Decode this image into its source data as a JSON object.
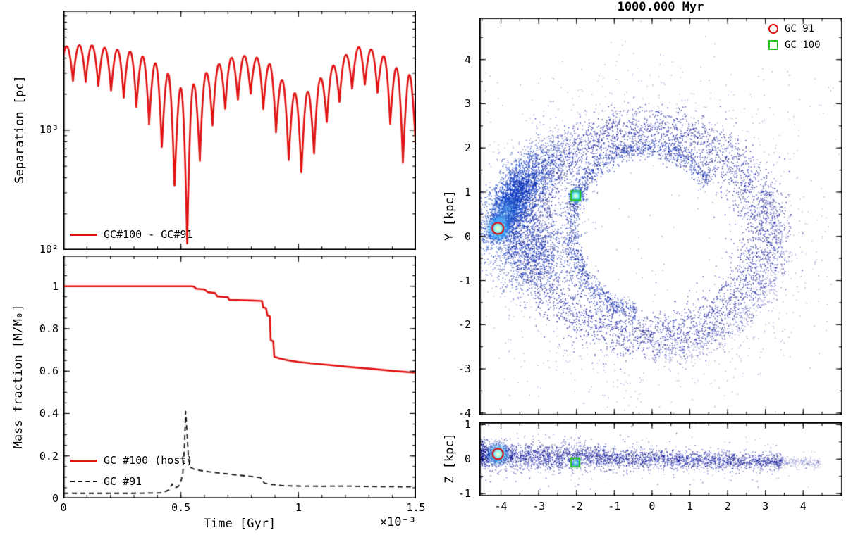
{
  "figure": {
    "background": "#ffffff",
    "frame_color": "#000000"
  },
  "chart_data": [
    {
      "id": "separation",
      "type": "line",
      "title": "",
      "xlabel": "",
      "ylabel": "Separation [pc]",
      "x_range": [
        0,
        1.5
      ],
      "y_log_range": [
        2,
        4
      ],
      "x_major": [
        0,
        0.5,
        1,
        1.5
      ],
      "x_minor_step": 0.1,
      "yticks": [
        {
          "v": 100,
          "label": "10²"
        },
        {
          "v": 1000,
          "label": "10³"
        }
      ],
      "legend": [
        {
          "label": "GC#100 - GC#91",
          "color": "#e01212",
          "style": "solid"
        }
      ],
      "series": {
        "name": "GC#100 - GC#91",
        "color": "#e01212",
        "width": 2.6,
        "period": 0.054,
        "sharpness": 0.45,
        "floor_log10": 2.02,
        "envelope_hi": [
          [
            0,
            5000
          ],
          [
            0.1,
            5200
          ],
          [
            0.2,
            4800
          ],
          [
            0.3,
            4500
          ],
          [
            0.4,
            3550
          ],
          [
            0.46,
            2800
          ],
          [
            0.5,
            2240
          ],
          [
            0.52,
            2000
          ],
          [
            0.56,
            2500
          ],
          [
            0.62,
            3160
          ],
          [
            0.7,
            4000
          ],
          [
            0.8,
            4260
          ],
          [
            0.88,
            3550
          ],
          [
            0.94,
            2500
          ],
          [
            0.99,
            2000
          ],
          [
            1.04,
            2100
          ],
          [
            1.1,
            2800
          ],
          [
            1.18,
            4000
          ],
          [
            1.26,
            5000
          ],
          [
            1.34,
            4570
          ],
          [
            1.4,
            3550
          ],
          [
            1.46,
            2800
          ],
          [
            1.5,
            3160
          ]
        ],
        "envelope_lo": [
          [
            0,
            2600
          ],
          [
            0.1,
            2500
          ],
          [
            0.2,
            2100
          ],
          [
            0.3,
            1650
          ],
          [
            0.4,
            890
          ],
          [
            0.46,
            400
          ],
          [
            0.5,
            200
          ],
          [
            0.527,
            105
          ],
          [
            0.56,
            400
          ],
          [
            0.62,
            1000
          ],
          [
            0.7,
            1580
          ],
          [
            0.8,
            2000
          ],
          [
            0.88,
            1260
          ],
          [
            0.94,
            630
          ],
          [
            0.99,
            420
          ],
          [
            1.04,
            420
          ],
          [
            1.1,
            1000
          ],
          [
            1.18,
            1780
          ],
          [
            1.26,
            2500
          ],
          [
            1.34,
            2000
          ],
          [
            1.4,
            1000
          ],
          [
            1.46,
            420
          ],
          [
            1.5,
            800
          ]
        ]
      }
    },
    {
      "id": "mass_fraction",
      "type": "line",
      "title": "",
      "xlabel": "Time [Gyr]",
      "x_multiplier": "×10⁻³",
      "ylabel": "Mass fraction [M/M₀]",
      "x_range": [
        0,
        1.5
      ],
      "y_range": [
        0,
        1.145
      ],
      "x_major": [
        0,
        0.5,
        1,
        1.5
      ],
      "x_minor_step": 0.1,
      "y_minor_step": 0.05,
      "xticks": [
        {
          "v": 0,
          "label": "0"
        },
        {
          "v": 0.5,
          "label": "0.5"
        },
        {
          "v": 1,
          "label": "1"
        },
        {
          "v": 1.5,
          "label": "1.5"
        }
      ],
      "yticks": [
        {
          "v": 0,
          "label": "0"
        },
        {
          "v": 0.2,
          "label": "0.2"
        },
        {
          "v": 0.4,
          "label": "0.4"
        },
        {
          "v": 0.6,
          "label": "0.6"
        },
        {
          "v": 0.8,
          "label": "0.8"
        },
        {
          "v": 1,
          "label": "1"
        }
      ],
      "legend": [
        {
          "label": "GC #100 (host)",
          "color": "#e01212",
          "style": "solid"
        },
        {
          "label": "GC #91",
          "color": "#111111",
          "style": "dashed"
        }
      ],
      "series": [
        {
          "name": "GC #100 (host)",
          "color": "#e01212",
          "style": "solid",
          "width": 2.6,
          "points": [
            [
              0,
              1.0
            ],
            [
              0.4,
              1.0
            ],
            [
              0.545,
              1.0
            ],
            [
              0.555,
              0.998
            ],
            [
              0.565,
              0.988
            ],
            [
              0.6,
              0.985
            ],
            [
              0.615,
              0.972
            ],
            [
              0.645,
              0.968
            ],
            [
              0.655,
              0.952
            ],
            [
              0.7,
              0.948
            ],
            [
              0.705,
              0.936
            ],
            [
              0.8,
              0.933
            ],
            [
              0.845,
              0.931
            ],
            [
              0.85,
              0.9
            ],
            [
              0.862,
              0.897
            ],
            [
              0.868,
              0.862
            ],
            [
              0.878,
              0.858
            ],
            [
              0.882,
              0.746
            ],
            [
              0.893,
              0.74
            ],
            [
              0.897,
              0.668
            ],
            [
              0.92,
              0.66
            ],
            [
              0.96,
              0.65
            ],
            [
              1.0,
              0.643
            ],
            [
              1.05,
              0.637
            ],
            [
              1.1,
              0.632
            ],
            [
              1.2,
              0.621
            ],
            [
              1.3,
              0.612
            ],
            [
              1.4,
              0.601
            ],
            [
              1.5,
              0.592
            ]
          ]
        },
        {
          "name": "GC #91",
          "color": "#111111",
          "style": "dashed",
          "width": 1.8,
          "points": [
            [
              0,
              0.024
            ],
            [
              0.3,
              0.024
            ],
            [
              0.42,
              0.026
            ],
            [
              0.45,
              0.04
            ],
            [
              0.462,
              0.068
            ],
            [
              0.472,
              0.05
            ],
            [
              0.488,
              0.055
            ],
            [
              0.5,
              0.08
            ],
            [
              0.508,
              0.12
            ],
            [
              0.515,
              0.245
            ],
            [
              0.52,
              0.41
            ],
            [
              0.526,
              0.31
            ],
            [
              0.532,
              0.185
            ],
            [
              0.54,
              0.147
            ],
            [
              0.56,
              0.135
            ],
            [
              0.62,
              0.125
            ],
            [
              0.68,
              0.117
            ],
            [
              0.74,
              0.11
            ],
            [
              0.8,
              0.103
            ],
            [
              0.838,
              0.098
            ],
            [
              0.855,
              0.072
            ],
            [
              0.88,
              0.066
            ],
            [
              0.93,
              0.06
            ],
            [
              1.0,
              0.058
            ],
            [
              1.1,
              0.057
            ],
            [
              1.2,
              0.058
            ],
            [
              1.3,
              0.056
            ],
            [
              1.4,
              0.055
            ],
            [
              1.5,
              0.054
            ]
          ]
        }
      ]
    },
    {
      "id": "xy_scatter",
      "type": "scatter",
      "title": "1000.000 Myr",
      "xlabel": "",
      "ylabel": "Y [kpc]",
      "x_range": [
        -4.57,
        5.04
      ],
      "y_range": [
        -4.05,
        4.95
      ],
      "x_major": [
        -4,
        -3,
        -2,
        -1,
        0,
        1,
        2,
        3,
        4
      ],
      "x_minor_step": 0.5,
      "y_minor_step": 0.5,
      "yticks": [
        {
          "v": 4,
          "label": "4"
        },
        {
          "v": 3,
          "label": "3"
        },
        {
          "v": 2,
          "label": "2"
        },
        {
          "v": 1,
          "label": "1"
        },
        {
          "v": 0,
          "label": "0"
        },
        {
          "v": -1,
          "label": "-1"
        },
        {
          "v": -2,
          "label": "-2"
        },
        {
          "v": -3,
          "label": "-3"
        },
        {
          "v": -4,
          "label": "-4"
        }
      ],
      "point_color": "#000d96",
      "legend": [
        {
          "label": "GC 91",
          "marker": "circle",
          "color": "#e01212"
        },
        {
          "label": "GC 100",
          "marker": "square",
          "color": "#25c425"
        }
      ],
      "components": [
        {
          "type": "ring",
          "n": 4200,
          "cx": -0.15,
          "cy": 0.1,
          "r": 2.35,
          "rsig": 0.27,
          "xscale": 1.32,
          "yscale": 1.0,
          "color": "#000d96",
          "alpha": 0.8,
          "size": 1.4
        },
        {
          "type": "ring",
          "n": 800,
          "cx": -0.1,
          "cy": 0.05,
          "r": 2.95,
          "rsig": 0.6,
          "xscale": 1.28,
          "yscale": 1.08,
          "color": "#000d96",
          "alpha": 0.38,
          "size": 1.3
        },
        {
          "type": "arc",
          "n": 1500,
          "cx": -0.15,
          "cy": 0.15,
          "rx": 2.0,
          "ry": 1.88,
          "a0": 35,
          "a1": 262,
          "sig": 0.12,
          "color": "#001ea8",
          "alpha": 0.8,
          "size": 1.4
        },
        {
          "type": "arc",
          "n": 700,
          "cx": 0.3,
          "cy": -0.15,
          "rx": 3.0,
          "ry": 2.45,
          "a0": -95,
          "a1": 30,
          "sig": 0.16,
          "color": "#000d96",
          "alpha": 0.5,
          "size": 1.3
        },
        {
          "type": "blob",
          "n": 2400,
          "cx": -3.7,
          "cy": 0.78,
          "sx": 0.5,
          "sy": 0.26,
          "rot": 57,
          "color": "#0a36bf",
          "alpha": 0.8,
          "size": 1.5
        },
        {
          "type": "blob",
          "n": 1100,
          "cx": -3.3,
          "cy": -0.35,
          "sx": 0.5,
          "sy": 0.45,
          "rot": 0,
          "color": "#0427ad",
          "alpha": 0.7,
          "size": 1.4
        },
        {
          "type": "blob",
          "n": 700,
          "cx": -2.85,
          "cy": 1.6,
          "sx": 0.55,
          "sy": 0.33,
          "rot": 25,
          "color": "#0427ad",
          "alpha": 0.6,
          "size": 1.4
        },
        {
          "type": "cluster",
          "n": 1500,
          "cx": -4.08,
          "cy": 0.18,
          "sig": 0.13,
          "colors": [
            "#1e90ff",
            "#40dce8",
            "#a8ffe8"
          ],
          "baseColor": "#0a36bf",
          "alpha": 0.9,
          "size": 1.5
        },
        {
          "type": "cluster",
          "n": 650,
          "cx": -2.02,
          "cy": 0.92,
          "sig": 0.08,
          "colors": [
            "#1e90ff",
            "#40dce8",
            "#a8ffe8"
          ],
          "baseColor": "#0a36bf",
          "alpha": 0.9,
          "size": 1.5
        },
        {
          "type": "uniform",
          "n": 240,
          "x0": -4.5,
          "x1": 4.85,
          "y0": -3.7,
          "y1": 3.8,
          "color": "#000d96",
          "alpha": 0.45,
          "size": 1.3
        }
      ],
      "glows": [
        {
          "x": -3.82,
          "y": 0.62,
          "r": 0.5,
          "stops": [
            [
              0,
              "rgba(80,200,255,0.4)"
            ],
            [
              1,
              "rgba(0,60,200,0)"
            ]
          ]
        },
        {
          "x": -3.96,
          "y": 0.4,
          "r": 0.3,
          "stops": [
            [
              0,
              "rgba(150,240,255,0.5)"
            ],
            [
              1,
              "rgba(30,100,230,0)"
            ]
          ]
        },
        {
          "x": -4.08,
          "y": 0.18,
          "r": 0.4,
          "stops": [
            [
              0,
              "rgba(255,250,190,0.95)"
            ],
            [
              0.18,
              "rgba(180,255,235,0.85)"
            ],
            [
              0.45,
              "rgba(70,200,255,0.5)"
            ],
            [
              1,
              "rgba(0,60,200,0)"
            ]
          ]
        },
        {
          "x": -2.02,
          "y": 0.92,
          "r": 0.22,
          "stops": [
            [
              0,
              "rgba(255,250,200,0.9)"
            ],
            [
              0.25,
              "rgba(170,255,235,0.8)"
            ],
            [
              0.55,
              "rgba(70,200,255,0.45)"
            ],
            [
              1,
              "rgba(0,60,200,0)"
            ]
          ]
        }
      ],
      "markers": [
        {
          "shape": "circle",
          "x": -4.08,
          "y": 0.18,
          "r": 8,
          "color": "#e01212"
        },
        {
          "shape": "square",
          "x": -2.02,
          "y": 0.92,
          "r": 6.5,
          "color": "#25c425"
        }
      ]
    },
    {
      "id": "xz_scatter",
      "type": "scatter",
      "title": "",
      "xlabel": "",
      "ylabel": "Z [kpc]",
      "x_range": [
        -4.57,
        5.04
      ],
      "y_range": [
        -1.08,
        1.07
      ],
      "x_major": [
        -4,
        -3,
        -2,
        -1,
        0,
        1,
        2,
        3,
        4
      ],
      "x_minor_step": 0.5,
      "y_minor_step": 0.5,
      "xticks": [
        {
          "v": -4,
          "label": "-4"
        },
        {
          "v": -3,
          "label": "-3"
        },
        {
          "v": -2,
          "label": "-2"
        },
        {
          "v": -1,
          "label": "-1"
        },
        {
          "v": 0,
          "label": "0"
        },
        {
          "v": 1,
          "label": "1"
        },
        {
          "v": 2,
          "label": "2"
        },
        {
          "v": 3,
          "label": "3"
        },
        {
          "v": 4,
          "label": "4"
        }
      ],
      "yticks": [
        {
          "v": 1,
          "label": "1"
        },
        {
          "v": 0,
          "label": "0"
        },
        {
          "v": -1,
          "label": "-1"
        }
      ],
      "point_color": "#000d96",
      "components": [
        {
          "type": "band",
          "n": 3600,
          "x0": -4.55,
          "x1": 3.45,
          "z0": 0.13,
          "z1": -0.07,
          "sig0": 0.2,
          "sig1": 0.1,
          "bias": 1.35,
          "color": "#000d96",
          "alpha": 0.7,
          "size": 1.3
        },
        {
          "type": "band",
          "n": 300,
          "x0": 3.0,
          "x1": 4.45,
          "z0": -0.05,
          "z1": -0.1,
          "sig0": 0.1,
          "sig1": 0.07,
          "bias": 1.0,
          "color": "#000d96",
          "alpha": 0.35,
          "size": 1.2
        },
        {
          "type": "cluster",
          "n": 900,
          "cx": -4.08,
          "cy": 0.15,
          "sig": 0.1,
          "colors": [
            "#1e90ff",
            "#40dce8",
            "#a8ffe8"
          ],
          "baseColor": "#0a36bf",
          "alpha": 0.9,
          "size": 1.4
        },
        {
          "type": "cluster",
          "n": 260,
          "cx": -2.03,
          "cy": -0.1,
          "sig": 0.055,
          "colors": [
            "#1e90ff",
            "#40dce8",
            "#a8ffe8"
          ],
          "baseColor": "#0a36bf",
          "alpha": 0.9,
          "size": 1.4
        },
        {
          "type": "uniform",
          "n": 110,
          "x0": -4.5,
          "x1": 3.5,
          "y0": -0.6,
          "y1": 0.65,
          "color": "#000d96",
          "alpha": 0.4,
          "size": 1.2
        }
      ],
      "glows": [
        {
          "x": -4.08,
          "y": 0.15,
          "r": 0.35,
          "stops": [
            [
              0,
              "rgba(255,250,190,0.95)"
            ],
            [
              0.2,
              "rgba(180,255,235,0.85)"
            ],
            [
              0.5,
              "rgba(70,200,255,0.5)"
            ],
            [
              1,
              "rgba(0,60,200,0)"
            ]
          ]
        },
        {
          "x": -2.03,
          "y": -0.1,
          "r": 0.12,
          "stops": [
            [
              0,
              "rgba(200,255,245,0.8)"
            ],
            [
              1,
              "rgba(0,60,200,0)"
            ]
          ]
        }
      ],
      "markers": [
        {
          "shape": "circle",
          "x": -4.08,
          "y": 0.15,
          "r": 7.5,
          "color": "#e01212"
        },
        {
          "shape": "square",
          "x": -2.03,
          "y": -0.1,
          "r": 6,
          "color": "#25c425"
        }
      ]
    }
  ]
}
